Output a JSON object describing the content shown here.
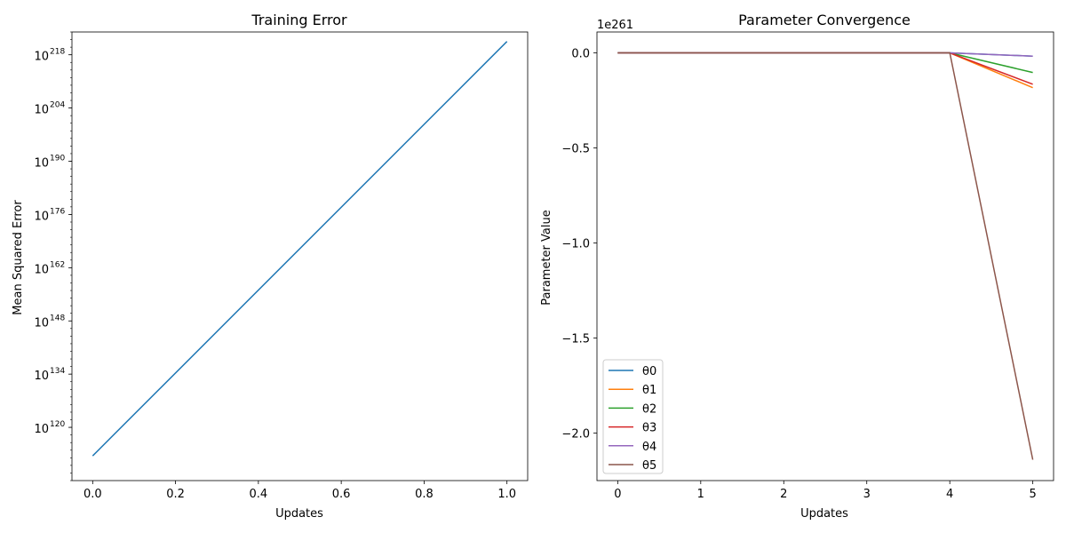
{
  "chart_data": [
    {
      "type": "line",
      "title": "Training Error",
      "xlabel": "Updates",
      "ylabel": "Mean Squared Error",
      "yscale": "log",
      "xlim": [
        -0.05,
        1.05
      ],
      "ylim_log10": [
        106,
        224
      ],
      "xticks": [
        "0.0",
        "0.2",
        "0.4",
        "0.6",
        "0.8",
        "1.0"
      ],
      "xtick_values": [
        0.0,
        0.2,
        0.4,
        0.6,
        0.8,
        1.0
      ],
      "yticks": [
        {
          "base": "10",
          "exp": "120",
          "value_log10": 120
        },
        {
          "base": "10",
          "exp": "134",
          "value_log10": 134
        },
        {
          "base": "10",
          "exp": "148",
          "value_log10": 148
        },
        {
          "base": "10",
          "exp": "162",
          "value_log10": 162
        },
        {
          "base": "10",
          "exp": "176",
          "value_log10": 176
        },
        {
          "base": "10",
          "exp": "190",
          "value_log10": 190
        },
        {
          "base": "10",
          "exp": "204",
          "value_log10": 204
        },
        {
          "base": "10",
          "exp": "218",
          "value_log10": 218
        }
      ],
      "series": [
        {
          "color": "#1f77b4",
          "x": [
            0.0,
            1.0
          ],
          "y_log10": [
            112.5,
            221.5
          ]
        }
      ]
    },
    {
      "type": "line",
      "title": "Parameter Convergence",
      "xlabel": "Updates",
      "ylabel": "Parameter Value",
      "offset_text": "1e261",
      "xlim": [
        -0.25,
        5.25
      ],
      "ylim": [
        -2.25,
        0.11
      ],
      "xticks": [
        "0",
        "1",
        "2",
        "3",
        "4",
        "5"
      ],
      "xtick_values": [
        0,
        1,
        2,
        3,
        4,
        5
      ],
      "yticks": [
        "0.0",
        "−0.5",
        "−1.0",
        "−1.5",
        "−2.0"
      ],
      "ytick_values": [
        0.0,
        -0.5,
        -1.0,
        -1.5,
        -2.0
      ],
      "legend_position": "lower-left",
      "x": [
        0,
        1,
        2,
        3,
        4,
        5
      ],
      "series": [
        {
          "name": "θ0",
          "color": "#1f77b4",
          "values": [
            0,
            0,
            0,
            0,
            0,
            -0.017
          ]
        },
        {
          "name": "θ1",
          "color": "#ff7f0e",
          "values": [
            0,
            0,
            0,
            0,
            0,
            -0.183
          ]
        },
        {
          "name": "θ2",
          "color": "#2ca02c",
          "values": [
            0,
            0,
            0,
            0,
            0,
            -0.103
          ]
        },
        {
          "name": "θ3",
          "color": "#d62728",
          "values": [
            0,
            0,
            0,
            0,
            0,
            -0.165
          ]
        },
        {
          "name": "θ4",
          "color": "#9467bd",
          "values": [
            0,
            0,
            0,
            0,
            0,
            -0.017
          ]
        },
        {
          "name": "θ5",
          "color": "#8c564b",
          "values": [
            0,
            0,
            0,
            0,
            0,
            -2.14
          ]
        }
      ]
    }
  ]
}
